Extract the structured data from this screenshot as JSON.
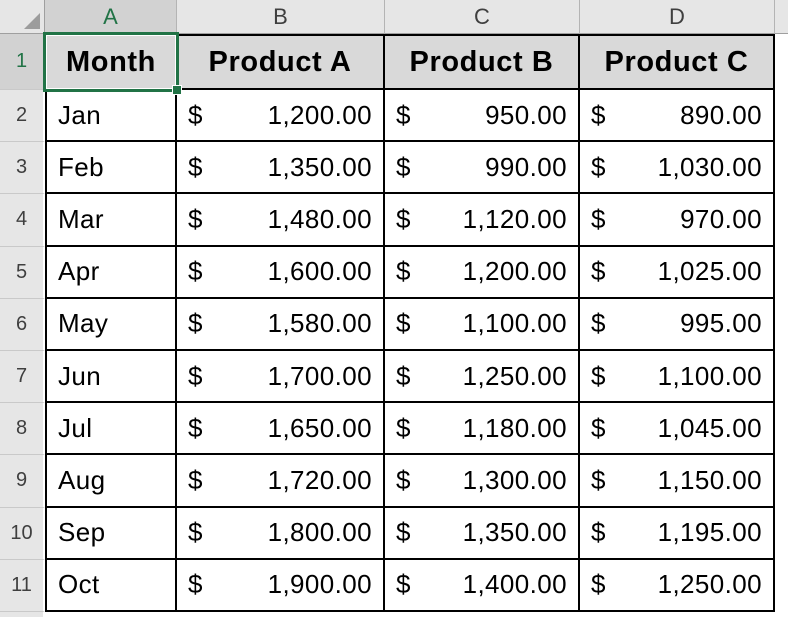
{
  "sheet": {
    "column_headers": [
      "A",
      "B",
      "C",
      "D"
    ],
    "row_numbers": [
      "1",
      "2",
      "3",
      "4",
      "5",
      "6",
      "7",
      "8",
      "9",
      "10",
      "11"
    ],
    "selected_cell": "A1",
    "colors": {
      "selection_green": "#217346",
      "header_strip_bg": "#e6e6e6",
      "selected_header_bg": "#d2d2d2",
      "table_header_fill": "#d9d9d9",
      "grid_border": "#000000"
    }
  },
  "table": {
    "currency_symbol": "$",
    "headers": [
      "Month",
      "Product A",
      "Product B",
      "Product C"
    ],
    "rows": [
      {
        "month": "Jan",
        "product_a": "1,200.00",
        "product_b": "950.00",
        "product_c": "890.00"
      },
      {
        "month": "Feb",
        "product_a": "1,350.00",
        "product_b": "990.00",
        "product_c": "1,030.00"
      },
      {
        "month": "Mar",
        "product_a": "1,480.00",
        "product_b": "1,120.00",
        "product_c": "970.00"
      },
      {
        "month": "Apr",
        "product_a": "1,600.00",
        "product_b": "1,200.00",
        "product_c": "1,025.00"
      },
      {
        "month": "May",
        "product_a": "1,580.00",
        "product_b": "1,100.00",
        "product_c": "995.00"
      },
      {
        "month": "Jun",
        "product_a": "1,700.00",
        "product_b": "1,250.00",
        "product_c": "1,100.00"
      },
      {
        "month": "Jul",
        "product_a": "1,650.00",
        "product_b": "1,180.00",
        "product_c": "1,045.00"
      },
      {
        "month": "Aug",
        "product_a": "1,720.00",
        "product_b": "1,300.00",
        "product_c": "1,150.00"
      },
      {
        "month": "Sep",
        "product_a": "1,800.00",
        "product_b": "1,350.00",
        "product_c": "1,195.00"
      },
      {
        "month": "Oct",
        "product_a": "1,900.00",
        "product_b": "1,400.00",
        "product_c": "1,250.00"
      }
    ]
  }
}
